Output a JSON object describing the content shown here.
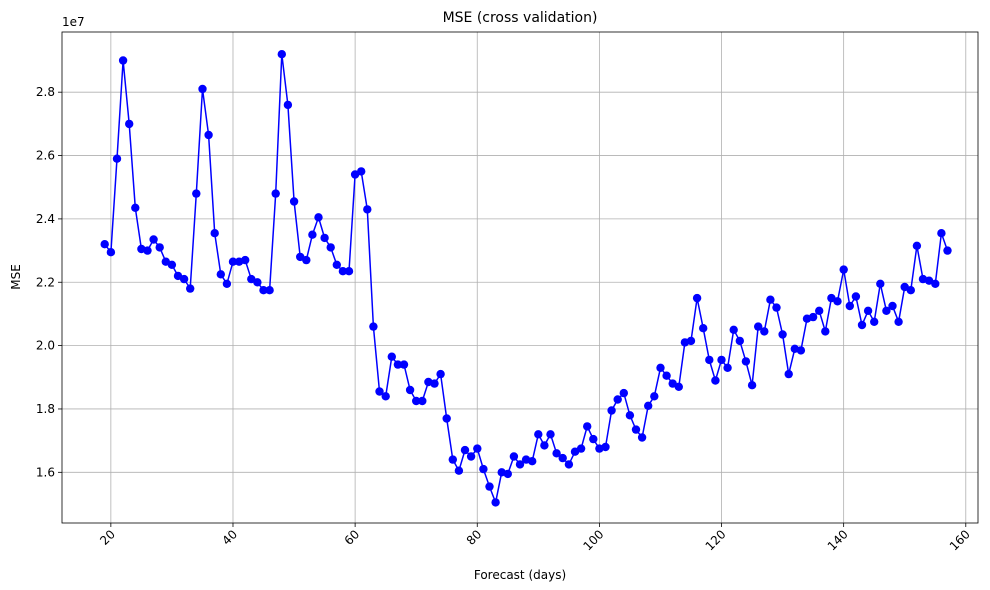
{
  "chart_data": {
    "type": "line",
    "title": "MSE (cross validation)",
    "xlabel": "Forecast (days)",
    "ylabel": "MSE",
    "y_scale_label": "1e7",
    "xlim": [
      12,
      162
    ],
    "ylim": [
      14.4,
      29.9
    ],
    "x_ticks": [
      20,
      40,
      60,
      80,
      100,
      120,
      140,
      160
    ],
    "y_ticks": [
      1.6,
      1.8,
      2.0,
      2.2,
      2.4,
      2.6,
      2.8
    ],
    "grid": true,
    "series_color": "#0000ff",
    "x": [
      19,
      20,
      21,
      22,
      23,
      24,
      25,
      26,
      27,
      28,
      29,
      30,
      31,
      32,
      33,
      34,
      35,
      36,
      37,
      38,
      39,
      40,
      41,
      42,
      43,
      44,
      45,
      46,
      47,
      48,
      49,
      50,
      51,
      52,
      53,
      54,
      55,
      56,
      57,
      58,
      59,
      60,
      61,
      62,
      63,
      64,
      65,
      66,
      67,
      68,
      69,
      70,
      71,
      72,
      73,
      74,
      75,
      76,
      77,
      78,
      79,
      80,
      81,
      82,
      83,
      84,
      85,
      86,
      87,
      88,
      89,
      90,
      91,
      92,
      93,
      94,
      95,
      96,
      97,
      98,
      99,
      100,
      101,
      102,
      103,
      104,
      105,
      106,
      107,
      108,
      109,
      110,
      111,
      112,
      113,
      114,
      115,
      116,
      117,
      118,
      119,
      120,
      121,
      122,
      123,
      124,
      125,
      126,
      127,
      128,
      129,
      130,
      131,
      132,
      133,
      134,
      135,
      136,
      137,
      138,
      139,
      140,
      141,
      142,
      143,
      144,
      145,
      146,
      147,
      148,
      149,
      150,
      151,
      152,
      153,
      154,
      155,
      156,
      157
    ],
    "y": [
      23.2,
      22.95,
      25.9,
      29.0,
      27.0,
      24.35,
      23.05,
      23.0,
      23.35,
      23.1,
      22.65,
      22.55,
      22.2,
      22.1,
      21.8,
      24.8,
      28.1,
      26.65,
      23.55,
      22.25,
      21.95,
      22.65,
      22.65,
      22.7,
      22.1,
      22.0,
      21.75,
      21.75,
      24.8,
      29.2,
      27.6,
      24.55,
      22.8,
      22.7,
      23.5,
      24.05,
      23.4,
      23.1,
      22.55,
      22.35,
      22.35,
      25.4,
      25.5,
      24.3,
      20.6,
      18.55,
      18.4,
      19.65,
      19.4,
      19.4,
      18.6,
      18.25,
      18.25,
      18.85,
      18.8,
      19.1,
      17.7,
      16.4,
      16.05,
      16.7,
      16.5,
      16.75,
      16.1,
      15.55,
      15.05,
      16.0,
      15.95,
      16.5,
      16.25,
      16.4,
      16.35,
      17.2,
      16.85,
      17.2,
      16.6,
      16.45,
      16.25,
      16.65,
      16.75,
      17.45,
      17.05,
      16.75,
      16.8,
      17.95,
      18.3,
      18.5,
      17.8,
      17.35,
      17.1,
      18.1,
      18.4,
      19.3,
      19.05,
      18.8,
      18.7,
      20.1,
      20.15,
      21.5,
      20.55,
      19.55,
      18.9,
      19.55,
      19.3,
      20.5,
      20.15,
      19.5,
      18.75,
      20.6,
      20.45,
      21.45,
      21.2,
      20.35,
      19.1,
      19.9,
      19.85,
      20.85,
      20.9,
      21.1,
      20.45,
      21.5,
      21.4,
      22.4,
      21.25,
      21.55,
      20.65,
      21.1,
      20.75,
      21.95,
      21.1,
      21.25,
      20.75,
      21.85,
      21.75,
      23.15,
      22.1,
      22.05,
      21.95,
      23.55,
      23.0
    ]
  }
}
